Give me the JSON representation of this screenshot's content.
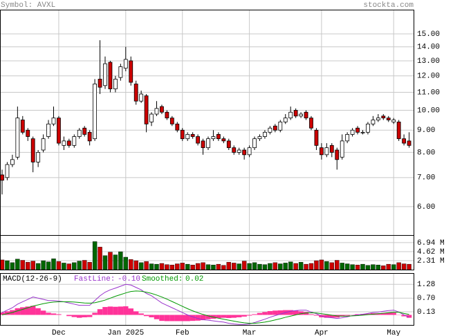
{
  "chart_data": [
    {
      "type": "candlestick",
      "title": "Symbol: AVXL",
      "source": "stockta.com",
      "log": true,
      "grid": true,
      "up_color": "#ffffff",
      "down_color": "#cc0000",
      "open": [
        7.1,
        7.0,
        7.5,
        7.8,
        9.5,
        9.0,
        8.6,
        7.6,
        8.1,
        8.7,
        9.3,
        9.6,
        8.3,
        8.5,
        8.3,
        8.7,
        9.1,
        8.9,
        8.6,
        11.8,
        11.4,
        12.9,
        11.2,
        11.9,
        12.5,
        13.0,
        11.5,
        10.5,
        10.8,
        9.4,
        9.8,
        10.2,
        9.9,
        9.6,
        9.3,
        9.0,
        8.6,
        8.8,
        8.7,
        8.5,
        8.2,
        8.6,
        8.8,
        8.6,
        8.5,
        8.2,
        8.0,
        8.1,
        7.9,
        8.2,
        8.6,
        8.7,
        8.9,
        9.2,
        9.0,
        9.4,
        9.6,
        10.0,
        9.7,
        9.9,
        9.6,
        9.0,
        8.2,
        7.9,
        8.3,
        8.1,
        7.8,
        8.5,
        8.8,
        9.1,
        8.9,
        8.9,
        9.3,
        9.5,
        9.7,
        9.6,
        9.4,
        9.4,
        8.6,
        8.5
      ],
      "high": [
        7.3,
        7.6,
        7.9,
        10.2,
        9.7,
        9.1,
        8.7,
        8.1,
        8.8,
        9.5,
        10.2,
        9.7,
        8.7,
        8.6,
        8.8,
        9.1,
        9.2,
        9.0,
        11.8,
        14.5,
        13.3,
        13.0,
        12.0,
        12.8,
        14.0,
        13.3,
        11.7,
        11.1,
        10.9,
        9.9,
        10.5,
        10.3,
        10.0,
        9.7,
        9.4,
        9.1,
        8.9,
        8.9,
        8.8,
        8.6,
        8.7,
        9.0,
        8.9,
        8.7,
        8.6,
        8.3,
        8.2,
        8.2,
        8.3,
        8.7,
        8.8,
        9.0,
        9.2,
        9.3,
        9.5,
        9.8,
        10.2,
        10.1,
        9.9,
        10.0,
        9.7,
        9.1,
        8.4,
        8.4,
        8.4,
        8.2,
        8.8,
        8.9,
        9.1,
        9.2,
        9.0,
        9.4,
        9.7,
        9.8,
        9.8,
        9.7,
        9.6,
        9.5,
        8.8,
        8.9
      ],
      "low": [
        6.4,
        6.9,
        7.4,
        7.7,
        8.8,
        8.5,
        7.2,
        7.4,
        8.0,
        8.6,
        9.2,
        8.3,
        8.1,
        8.2,
        8.2,
        8.6,
        8.7,
        8.3,
        8.5,
        10.9,
        11.2,
        11.0,
        11.0,
        11.7,
        12.3,
        11.4,
        10.3,
        10.4,
        8.9,
        9.2,
        9.7,
        9.8,
        9.5,
        9.2,
        8.9,
        8.5,
        8.5,
        8.6,
        8.3,
        7.9,
        8.1,
        8.5,
        8.5,
        8.4,
        8.1,
        7.9,
        7.9,
        7.7,
        7.8,
        8.1,
        8.5,
        8.6,
        8.8,
        8.9,
        8.9,
        9.3,
        9.5,
        9.6,
        9.6,
        9.5,
        9.0,
        8.1,
        7.7,
        7.8,
        7.8,
        7.3,
        7.7,
        8.4,
        8.7,
        8.8,
        8.8,
        8.8,
        9.2,
        9.4,
        9.5,
        9.4,
        9.3,
        8.5,
        8.3,
        8.2
      ],
      "close": [
        6.9,
        7.5,
        7.7,
        9.6,
        8.9,
        8.7,
        7.6,
        8.0,
        8.6,
        9.3,
        9.6,
        8.4,
        8.5,
        8.3,
        8.7,
        9.0,
        8.8,
        8.5,
        11.5,
        11.3,
        12.8,
        11.2,
        11.8,
        12.6,
        13.1,
        11.6,
        10.5,
        10.9,
        9.3,
        9.8,
        10.1,
        9.9,
        9.6,
        9.3,
        9.0,
        8.6,
        8.8,
        8.7,
        8.4,
        8.2,
        8.6,
        8.7,
        8.6,
        8.5,
        8.2,
        8.0,
        8.1,
        7.9,
        8.2,
        8.6,
        8.7,
        8.9,
        9.1,
        9.0,
        9.4,
        9.6,
        9.9,
        9.7,
        9.8,
        9.6,
        9.1,
        8.3,
        7.9,
        8.2,
        8.0,
        7.7,
        8.5,
        8.8,
        9.0,
        8.9,
        8.9,
        9.3,
        9.5,
        9.6,
        9.6,
        9.5,
        9.5,
        8.6,
        8.4,
        8.3
      ],
      "ylim": [
        5.16,
        17.05
      ],
      "yticks": [
        {
          "value": 15,
          "label": "15.00"
        },
        {
          "value": 14,
          "label": "14.00"
        },
        {
          "value": 13,
          "label": "13.00"
        },
        {
          "value": 12,
          "label": "12.00"
        },
        {
          "value": 11,
          "label": "11.00"
        },
        {
          "value": 10,
          "label": "10.00"
        },
        {
          "value": 9,
          "label": "9.00"
        },
        {
          "value": 8,
          "label": "8.00"
        },
        {
          "value": 7,
          "label": "7.00"
        },
        {
          "value": 6,
          "label": "6.00"
        }
      ]
    },
    {
      "type": "bar",
      "up_color": "#006600",
      "down_color": "#cc0000",
      "values": [
        2.5,
        2.3,
        1.8,
        2.7,
        2.4,
        1.9,
        2.2,
        1.6,
        2.3,
        2.0,
        2.8,
        2.1,
        1.7,
        1.5,
        1.8,
        2.2,
        2.4,
        1.9,
        7.2,
        5.8,
        3.6,
        4.5,
        3.8,
        4.6,
        3.2,
        2.6,
        2.3,
        1.8,
        2.1,
        1.5,
        1.4,
        1.6,
        1.3,
        1.2,
        1.5,
        1.7,
        1.4,
        1.2,
        1.6,
        1.8,
        1.3,
        1.2,
        1.4,
        1.1,
        1.9,
        1.7,
        1.5,
        2.2,
        1.6,
        1.8,
        1.4,
        1.3,
        1.6,
        1.8,
        1.5,
        1.7,
        2.0,
        1.6,
        1.9,
        1.4,
        1.6,
        2.3,
        2.5,
        2.1,
        1.8,
        2.4,
        1.7,
        1.5,
        1.3,
        1.2,
        1.4,
        1.1,
        1.3,
        1.2,
        1.0,
        1.4,
        1.3,
        1.8,
        1.5,
        1.4
      ],
      "ylim": [
        0,
        8.88
      ],
      "yticks": [
        {
          "value": 6.94,
          "label": "6.94 M"
        },
        {
          "value": 4.62,
          "label": "4.62 M"
        },
        {
          "value": 2.31,
          "label": "2.31 M"
        }
      ]
    },
    {
      "type": "macd",
      "title": "MACD(12-26-9)",
      "categories": [
        null,
        null,
        null,
        null,
        null,
        null,
        null,
        null,
        null,
        null,
        null,
        "Dec",
        null,
        null,
        null,
        null,
        null,
        null,
        null,
        null,
        null,
        null,
        null,
        null,
        "Jan 2025",
        null,
        null,
        null,
        null,
        null,
        null,
        null,
        null,
        null,
        null,
        "Feb",
        null,
        null,
        null,
        null,
        null,
        null,
        null,
        null,
        null,
        null,
        null,
        null,
        "Mar",
        null,
        null,
        null,
        null,
        null,
        null,
        null,
        null,
        null,
        null,
        null,
        null,
        null,
        "Apr",
        null,
        null,
        null,
        null,
        null,
        null,
        null,
        null,
        null,
        null,
        null,
        null,
        null,
        "May",
        null,
        null,
        null
      ],
      "series": [
        {
          "name": "FastLine:",
          "color": "#9933cc",
          "current_label": "-0.10",
          "values": [
            0.1,
            0.2,
            0.3,
            0.45,
            0.55,
            0.65,
            0.75,
            0.7,
            0.65,
            0.6,
            0.6,
            0.58,
            0.55,
            0.5,
            0.45,
            0.4,
            0.4,
            0.4,
            0.6,
            0.8,
            0.95,
            1.05,
            1.12,
            1.2,
            1.28,
            1.25,
            1.15,
            1.05,
            0.9,
            0.8,
            0.65,
            0.5,
            0.4,
            0.3,
            0.2,
            0.1,
            0.0,
            -0.08,
            -0.15,
            -0.2,
            -0.22,
            -0.25,
            -0.28,
            -0.3,
            -0.35,
            -0.38,
            -0.4,
            -0.4,
            -0.38,
            -0.32,
            -0.25,
            -0.18,
            -0.1,
            -0.03,
            0.03,
            0.1,
            0.15,
            0.18,
            0.2,
            0.2,
            0.12,
            0.05,
            -0.05,
            -0.1,
            -0.12,
            -0.15,
            -0.12,
            -0.08,
            -0.03,
            0.0,
            0.03,
            0.06,
            0.1,
            0.12,
            0.15,
            0.18,
            0.2,
            0.12,
            0.0,
            -0.1
          ]
        },
        {
          "name": "Smoothed:",
          "color": "#009900",
          "current_label": "0.02",
          "values": [
            0.0,
            0.05,
            0.1,
            0.17,
            0.23,
            0.3,
            0.37,
            0.42,
            0.47,
            0.51,
            0.54,
            0.55,
            0.55,
            0.55,
            0.54,
            0.52,
            0.5,
            0.49,
            0.51,
            0.56,
            0.62,
            0.7,
            0.78,
            0.85,
            0.92,
            0.98,
            1.0,
            0.99,
            0.95,
            0.9,
            0.83,
            0.75,
            0.66,
            0.56,
            0.46,
            0.36,
            0.26,
            0.17,
            0.09,
            0.02,
            -0.04,
            -0.09,
            -0.14,
            -0.18,
            -0.22,
            -0.26,
            -0.3,
            -0.33,
            -0.35,
            -0.35,
            -0.33,
            -0.3,
            -0.26,
            -0.21,
            -0.16,
            -0.1,
            -0.05,
            0.0,
            0.05,
            0.08,
            0.09,
            0.08,
            0.05,
            0.02,
            -0.01,
            -0.04,
            -0.05,
            -0.05,
            -0.04,
            -0.03,
            -0.01,
            0.01,
            0.03,
            0.05,
            0.07,
            0.09,
            0.11,
            0.11,
            0.06,
            0.02
          ]
        }
      ],
      "histogram": {
        "color": "#ff3399",
        "values": [
          0.1,
          0.15,
          0.2,
          0.28,
          0.32,
          0.35,
          0.38,
          0.28,
          0.18,
          0.09,
          0.06,
          0.03,
          0,
          -0.05,
          -0.09,
          -0.12,
          -0.1,
          -0.09,
          0.09,
          0.24,
          0.33,
          0.35,
          0.34,
          0.35,
          0.36,
          0.27,
          0.15,
          0.06,
          -0.05,
          -0.1,
          -0.18,
          -0.25,
          -0.26,
          -0.26,
          -0.26,
          -0.26,
          -0.26,
          -0.25,
          -0.24,
          -0.22,
          -0.18,
          -0.16,
          -0.14,
          -0.12,
          -0.13,
          -0.12,
          -0.1,
          -0.07,
          -0.03,
          0.03,
          0.08,
          0.12,
          0.16,
          0.18,
          0.19,
          0.2,
          0.2,
          0.18,
          0.15,
          0.12,
          0.03,
          -0.03,
          -0.1,
          -0.12,
          -0.11,
          -0.11,
          -0.07,
          -0.03,
          0.01,
          0.03,
          0.04,
          0.05,
          0.07,
          0.07,
          0.08,
          0.09,
          0.09,
          0.01,
          -0.06,
          -0.12
        ]
      },
      "ylim": [
        -0.42,
        1.75
      ],
      "yticks": [
        {
          "value": 1.28,
          "label": "1.28"
        },
        {
          "value": 0.7,
          "label": "0.70"
        },
        {
          "value": 0.13,
          "label": "0.13"
        }
      ]
    }
  ]
}
